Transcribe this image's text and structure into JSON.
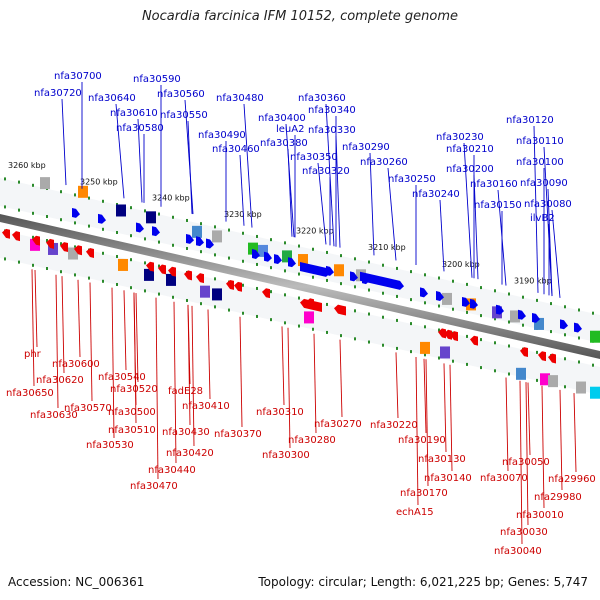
{
  "title": "Nocardia farcinica IFM 10152, complete genome",
  "footer": {
    "accession": "Accession: NC_006361",
    "summary": "Topology: circular; Length: 6,021,225 bp; Genes: 5,747"
  },
  "colors": {
    "forward": "#0000ee",
    "reverse": "#ee0000",
    "backbone": "#888888",
    "label_fwd": "#0000cc",
    "label_rev": "#cc0000"
  },
  "kbp_ticks": [
    "3260 kbp",
    "3250 kbp",
    "3240 kbp",
    "3230 kbp",
    "3220 kbp",
    "3210 kbp",
    "3200 kbp",
    "3190 kbp"
  ],
  "forward_labels": [
    "nfa30700",
    "nfa30720",
    "nfa30640",
    "nfa30590",
    "nfa30610",
    "nfa30560",
    "nfa30580",
    "nfa30550",
    "nfa30480",
    "nfa30490",
    "nfa30460",
    "nfa30400",
    "leuA2",
    "nfa30380",
    "nfa30360",
    "nfa30340",
    "nfa30330",
    "nfa30350",
    "nfa30320",
    "nfa30290",
    "nfa30260",
    "nfa30250",
    "nfa30240",
    "nfa30230",
    "nfa30210",
    "nfa30200",
    "nfa30160",
    "nfa30150",
    "nfa30120",
    "nfa30110",
    "nfa30100",
    "nfa30090",
    "nfa30080",
    "ilvB2"
  ],
  "reverse_labels": [
    "phr",
    "nfa30600",
    "nfa30620",
    "nfa30650",
    "nfa30630",
    "nfa30540",
    "nfa30520",
    "nfa30570",
    "nfa30500",
    "nfa30510",
    "nfa30530",
    "fadE28",
    "nfa30410",
    "nfa30430",
    "nfa30420",
    "nfa30440",
    "nfa30470",
    "nfa30370",
    "nfa30310",
    "nfa30280",
    "nfa30300",
    "nfa30270",
    "nfa30220",
    "nfa30190",
    "nfa30130",
    "nfa30140",
    "nfa30170",
    "echA15",
    "nfa30050",
    "nfa30070",
    "nfa29960",
    "nfa29980",
    "nfa30010",
    "nfa30030",
    "nfa30040"
  ]
}
